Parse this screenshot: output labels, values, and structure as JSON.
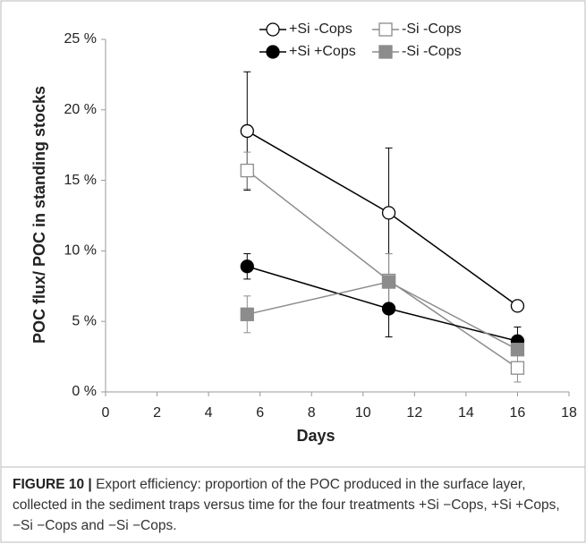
{
  "chart_data": {
    "type": "line",
    "x": [
      5.5,
      11,
      16
    ],
    "xlim": [
      0,
      18
    ],
    "xticks": [
      0,
      2,
      4,
      6,
      8,
      10,
      12,
      14,
      16,
      18
    ],
    "ylim": [
      0,
      25
    ],
    "yticks": [
      {
        "value": 0,
        "label": "0 %"
      },
      {
        "value": 5,
        "label": "5 %"
      },
      {
        "value": 10,
        "label": "10 %"
      },
      {
        "value": 15,
        "label": "15 %"
      },
      {
        "value": 20,
        "label": "20 %"
      },
      {
        "value": 25,
        "label": "25 %"
      }
    ],
    "x_label": "Days",
    "y_label": "POC flux/ POC in standing stocks",
    "series": [
      {
        "name": "+Si -Cops",
        "color": "#000000",
        "marker": "circle",
        "filled": false,
        "values": [
          18.5,
          12.7,
          6.1
        ],
        "errors": [
          4.2,
          4.6,
          null
        ]
      },
      {
        "name": "-Si -Cops",
        "color": "#8c8c8c",
        "marker": "square",
        "filled": false,
        "values": [
          15.7,
          7.9,
          1.7
        ],
        "errors": [
          1.3,
          1.9,
          1.0
        ]
      },
      {
        "name": "+Si +Cops",
        "color": "#000000",
        "marker": "circle",
        "filled": true,
        "values": [
          8.9,
          5.9,
          3.6
        ],
        "errors": [
          0.9,
          2.0,
          1.0
        ]
      },
      {
        "name": "-Si -Cops",
        "color": "#8c8c8c",
        "marker": "square",
        "filled": true,
        "values": [
          5.5,
          7.8,
          3.0
        ],
        "errors": [
          1.3,
          2.0,
          null
        ]
      }
    ]
  },
  "caption": {
    "label": "FIGURE 10 |",
    "text": "Export efficiency: proportion of the POC produced in the surface layer, collected in the sediment traps versus time for the four treatments +Si −Cops, +Si +Cops, −Si −Cops and −Si −Cops."
  }
}
